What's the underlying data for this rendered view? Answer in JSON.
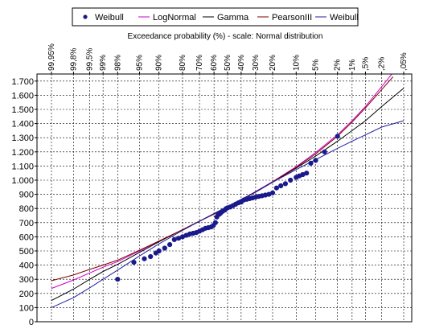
{
  "chart_data": {
    "type": "scatter",
    "title": "Exceedance probability (%) - scale: Normal distribution",
    "ylim": [
      0,
      1750
    ],
    "y_ticks": [
      0,
      100,
      200,
      300,
      400,
      500,
      600,
      700,
      800,
      900,
      1000,
      1100,
      1200,
      1300,
      1400,
      1500,
      1600,
      1700
    ],
    "y_tick_labels": [
      "0",
      "100",
      "200",
      "300",
      "400",
      "500",
      "600",
      "700",
      "800",
      "900",
      "1.000",
      "1.100",
      "1.200",
      "1.300",
      "1.400",
      "1.500",
      "1.600",
      "1.700"
    ],
    "x_scale": "normal-probability",
    "x_ticks": [
      {
        "p": 99.95,
        "label": "99,95%"
      },
      {
        "p": 99.8,
        "label": "99,8%"
      },
      {
        "p": 99.5,
        "label": "99,5%"
      },
      {
        "p": 99,
        "label": "99%"
      },
      {
        "p": 98,
        "label": "98%"
      },
      {
        "p": 95,
        "label": "95%"
      },
      {
        "p": 90,
        "label": "90%"
      },
      {
        "p": 80,
        "label": "80%"
      },
      {
        "p": 70,
        "label": "70%"
      },
      {
        "p": 60,
        "label": "60%"
      },
      {
        "p": 50,
        "label": "50%"
      },
      {
        "p": 40,
        "label": "40%"
      },
      {
        "p": 30,
        "label": "30%"
      },
      {
        "p": 20,
        "label": "20%"
      },
      {
        "p": 10,
        "label": "10%"
      },
      {
        "p": 5,
        "label": "5%"
      },
      {
        "p": 2,
        "label": "2%"
      },
      {
        "p": 1,
        "label": "1%"
      },
      {
        "p": 0.5,
        "label": ",5%"
      },
      {
        "p": 0.2,
        "label": ",2%"
      },
      {
        "p": 0.05,
        "label": ",05%"
      }
    ],
    "grid": true,
    "legend_position": "top",
    "series": [
      {
        "name": "Weibull",
        "kind": "points",
        "color": "#1a1a8c",
        "points": [
          [
            98.0,
            300
          ],
          [
            96.0,
            420
          ],
          [
            94.0,
            445
          ],
          [
            92.5,
            460
          ],
          [
            91.0,
            485
          ],
          [
            90.0,
            500
          ],
          [
            88.0,
            520
          ],
          [
            86.0,
            545
          ],
          [
            84.0,
            580
          ],
          [
            82.0,
            590
          ],
          [
            80.0,
            600
          ],
          [
            78.0,
            610
          ],
          [
            76.0,
            620
          ],
          [
            74.0,
            625
          ],
          [
            72.0,
            630
          ],
          [
            70.0,
            640
          ],
          [
            68.0,
            650
          ],
          [
            66.0,
            660
          ],
          [
            64.0,
            665
          ],
          [
            62.0,
            670
          ],
          [
            60.5,
            680
          ],
          [
            59.0,
            700
          ],
          [
            58.0,
            740
          ],
          [
            57.0,
            755
          ],
          [
            56.0,
            760
          ],
          [
            55.0,
            770
          ],
          [
            54.0,
            778
          ],
          [
            53.0,
            785
          ],
          [
            52.0,
            790
          ],
          [
            51.0,
            800
          ],
          [
            50.0,
            805
          ],
          [
            48.0,
            810
          ],
          [
            46.0,
            820
          ],
          [
            44.0,
            830
          ],
          [
            42.0,
            840
          ],
          [
            40.0,
            845
          ],
          [
            38.0,
            860
          ],
          [
            36.0,
            865
          ],
          [
            34.0,
            870
          ],
          [
            32.0,
            875
          ],
          [
            30.0,
            880
          ],
          [
            28.0,
            885
          ],
          [
            26.0,
            890
          ],
          [
            24.0,
            895
          ],
          [
            22.0,
            900
          ],
          [
            20.0,
            910
          ],
          [
            18.0,
            945
          ],
          [
            16.0,
            960
          ],
          [
            14.0,
            975
          ],
          [
            12.0,
            1000
          ],
          [
            10.0,
            1020
          ],
          [
            9.0,
            1030
          ],
          [
            8.0,
            1040
          ],
          [
            7.0,
            1050
          ],
          [
            6.0,
            1120
          ],
          [
            5.0,
            1140
          ],
          [
            3.5,
            1200
          ],
          [
            2.0,
            1310
          ]
        ]
      },
      {
        "name": "LogNormal",
        "kind": "line",
        "color": "#cc00cc",
        "points": [
          [
            99.95,
            235
          ],
          [
            99.8,
            295
          ],
          [
            99.5,
            345
          ],
          [
            99,
            385
          ],
          [
            98,
            425
          ],
          [
            95,
            500
          ],
          [
            90,
            570
          ],
          [
            80,
            650
          ],
          [
            70,
            710
          ],
          [
            60,
            760
          ],
          [
            50,
            810
          ],
          [
            40,
            860
          ],
          [
            30,
            920
          ],
          [
            20,
            990
          ],
          [
            10,
            1095
          ],
          [
            5,
            1195
          ],
          [
            2,
            1320
          ],
          [
            1,
            1420
          ],
          [
            0.5,
            1520
          ],
          [
            0.2,
            1660
          ],
          [
            0.1,
            1760
          ]
        ]
      },
      {
        "name": "Gamma",
        "kind": "line",
        "color": "#000000",
        "points": [
          [
            99.95,
            150
          ],
          [
            99.8,
            230
          ],
          [
            99.5,
            300
          ],
          [
            99,
            355
          ],
          [
            98,
            405
          ],
          [
            95,
            490
          ],
          [
            90,
            565
          ],
          [
            80,
            650
          ],
          [
            70,
            710
          ],
          [
            60,
            760
          ],
          [
            50,
            810
          ],
          [
            40,
            860
          ],
          [
            30,
            915
          ],
          [
            20,
            985
          ],
          [
            10,
            1085
          ],
          [
            5,
            1170
          ],
          [
            2,
            1275
          ],
          [
            1,
            1350
          ],
          [
            0.5,
            1420
          ],
          [
            0.2,
            1520
          ],
          [
            0.05,
            1650
          ]
        ]
      },
      {
        "name": "PearsonIII",
        "kind": "line",
        "color": "#800000",
        "points": [
          [
            99.95,
            290
          ],
          [
            99.8,
            330
          ],
          [
            99.5,
            370
          ],
          [
            99,
            400
          ],
          [
            98,
            435
          ],
          [
            95,
            505
          ],
          [
            90,
            570
          ],
          [
            80,
            650
          ],
          [
            70,
            710
          ],
          [
            60,
            760
          ],
          [
            50,
            810
          ],
          [
            40,
            860
          ],
          [
            30,
            918
          ],
          [
            20,
            988
          ],
          [
            10,
            1090
          ],
          [
            5,
            1185
          ],
          [
            2,
            1310
          ],
          [
            1,
            1410
          ],
          [
            0.5,
            1510
          ],
          [
            0.2,
            1640
          ],
          [
            0.1,
            1730
          ]
        ]
      },
      {
        "name": "Weibull",
        "kind": "line",
        "color": "#2020a0",
        "points": [
          [
            99.95,
            100
          ],
          [
            99.8,
            170
          ],
          [
            99.5,
            240
          ],
          [
            99,
            300
          ],
          [
            98,
            365
          ],
          [
            95,
            465
          ],
          [
            90,
            550
          ],
          [
            80,
            645
          ],
          [
            70,
            710
          ],
          [
            60,
            765
          ],
          [
            50,
            815
          ],
          [
            40,
            865
          ],
          [
            30,
            918
          ],
          [
            20,
            985
          ],
          [
            10,
            1075
          ],
          [
            5,
            1145
          ],
          [
            2,
            1225
          ],
          [
            1,
            1275
          ],
          [
            0.5,
            1320
          ],
          [
            0.2,
            1375
          ],
          [
            0.05,
            1420
          ]
        ]
      }
    ]
  }
}
